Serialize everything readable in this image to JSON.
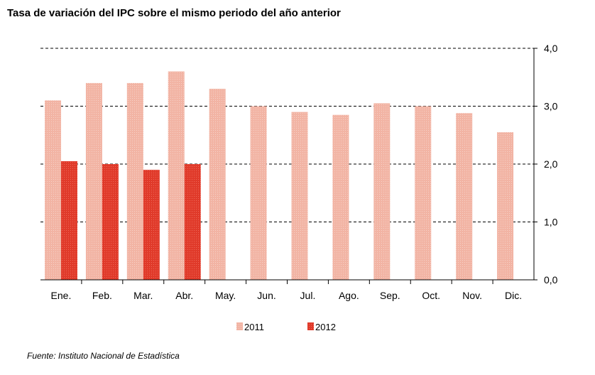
{
  "chart_data": {
    "type": "bar",
    "title": "Tasa de variación del IPC sobre el mismo periodo del año anterior",
    "source": "Fuente: Instituto Nacional de Estadística",
    "categories": [
      "Ene.",
      "Feb.",
      "Mar.",
      "Abr.",
      "May.",
      "Jun.",
      "Jul.",
      "Ago.",
      "Sep.",
      "Oct.",
      "Nov.",
      "Dic."
    ],
    "series": [
      {
        "name": "2011",
        "color": "#f2b4a4",
        "values": [
          3.1,
          3.4,
          3.4,
          3.6,
          3.3,
          3.0,
          2.9,
          2.85,
          3.05,
          3.0,
          2.88,
          2.55
        ]
      },
      {
        "name": "2012",
        "color": "#e03a2a",
        "values": [
          2.05,
          2.0,
          1.9,
          2.0,
          null,
          null,
          null,
          null,
          null,
          null,
          null,
          null
        ]
      }
    ],
    "ylim": [
      0,
      4
    ],
    "yticks": [
      "0,0",
      "1,0",
      "2,0",
      "3,0",
      "4,0"
    ],
    "grid": true,
    "y_axis_side": "right",
    "legend_position": "bottom"
  }
}
